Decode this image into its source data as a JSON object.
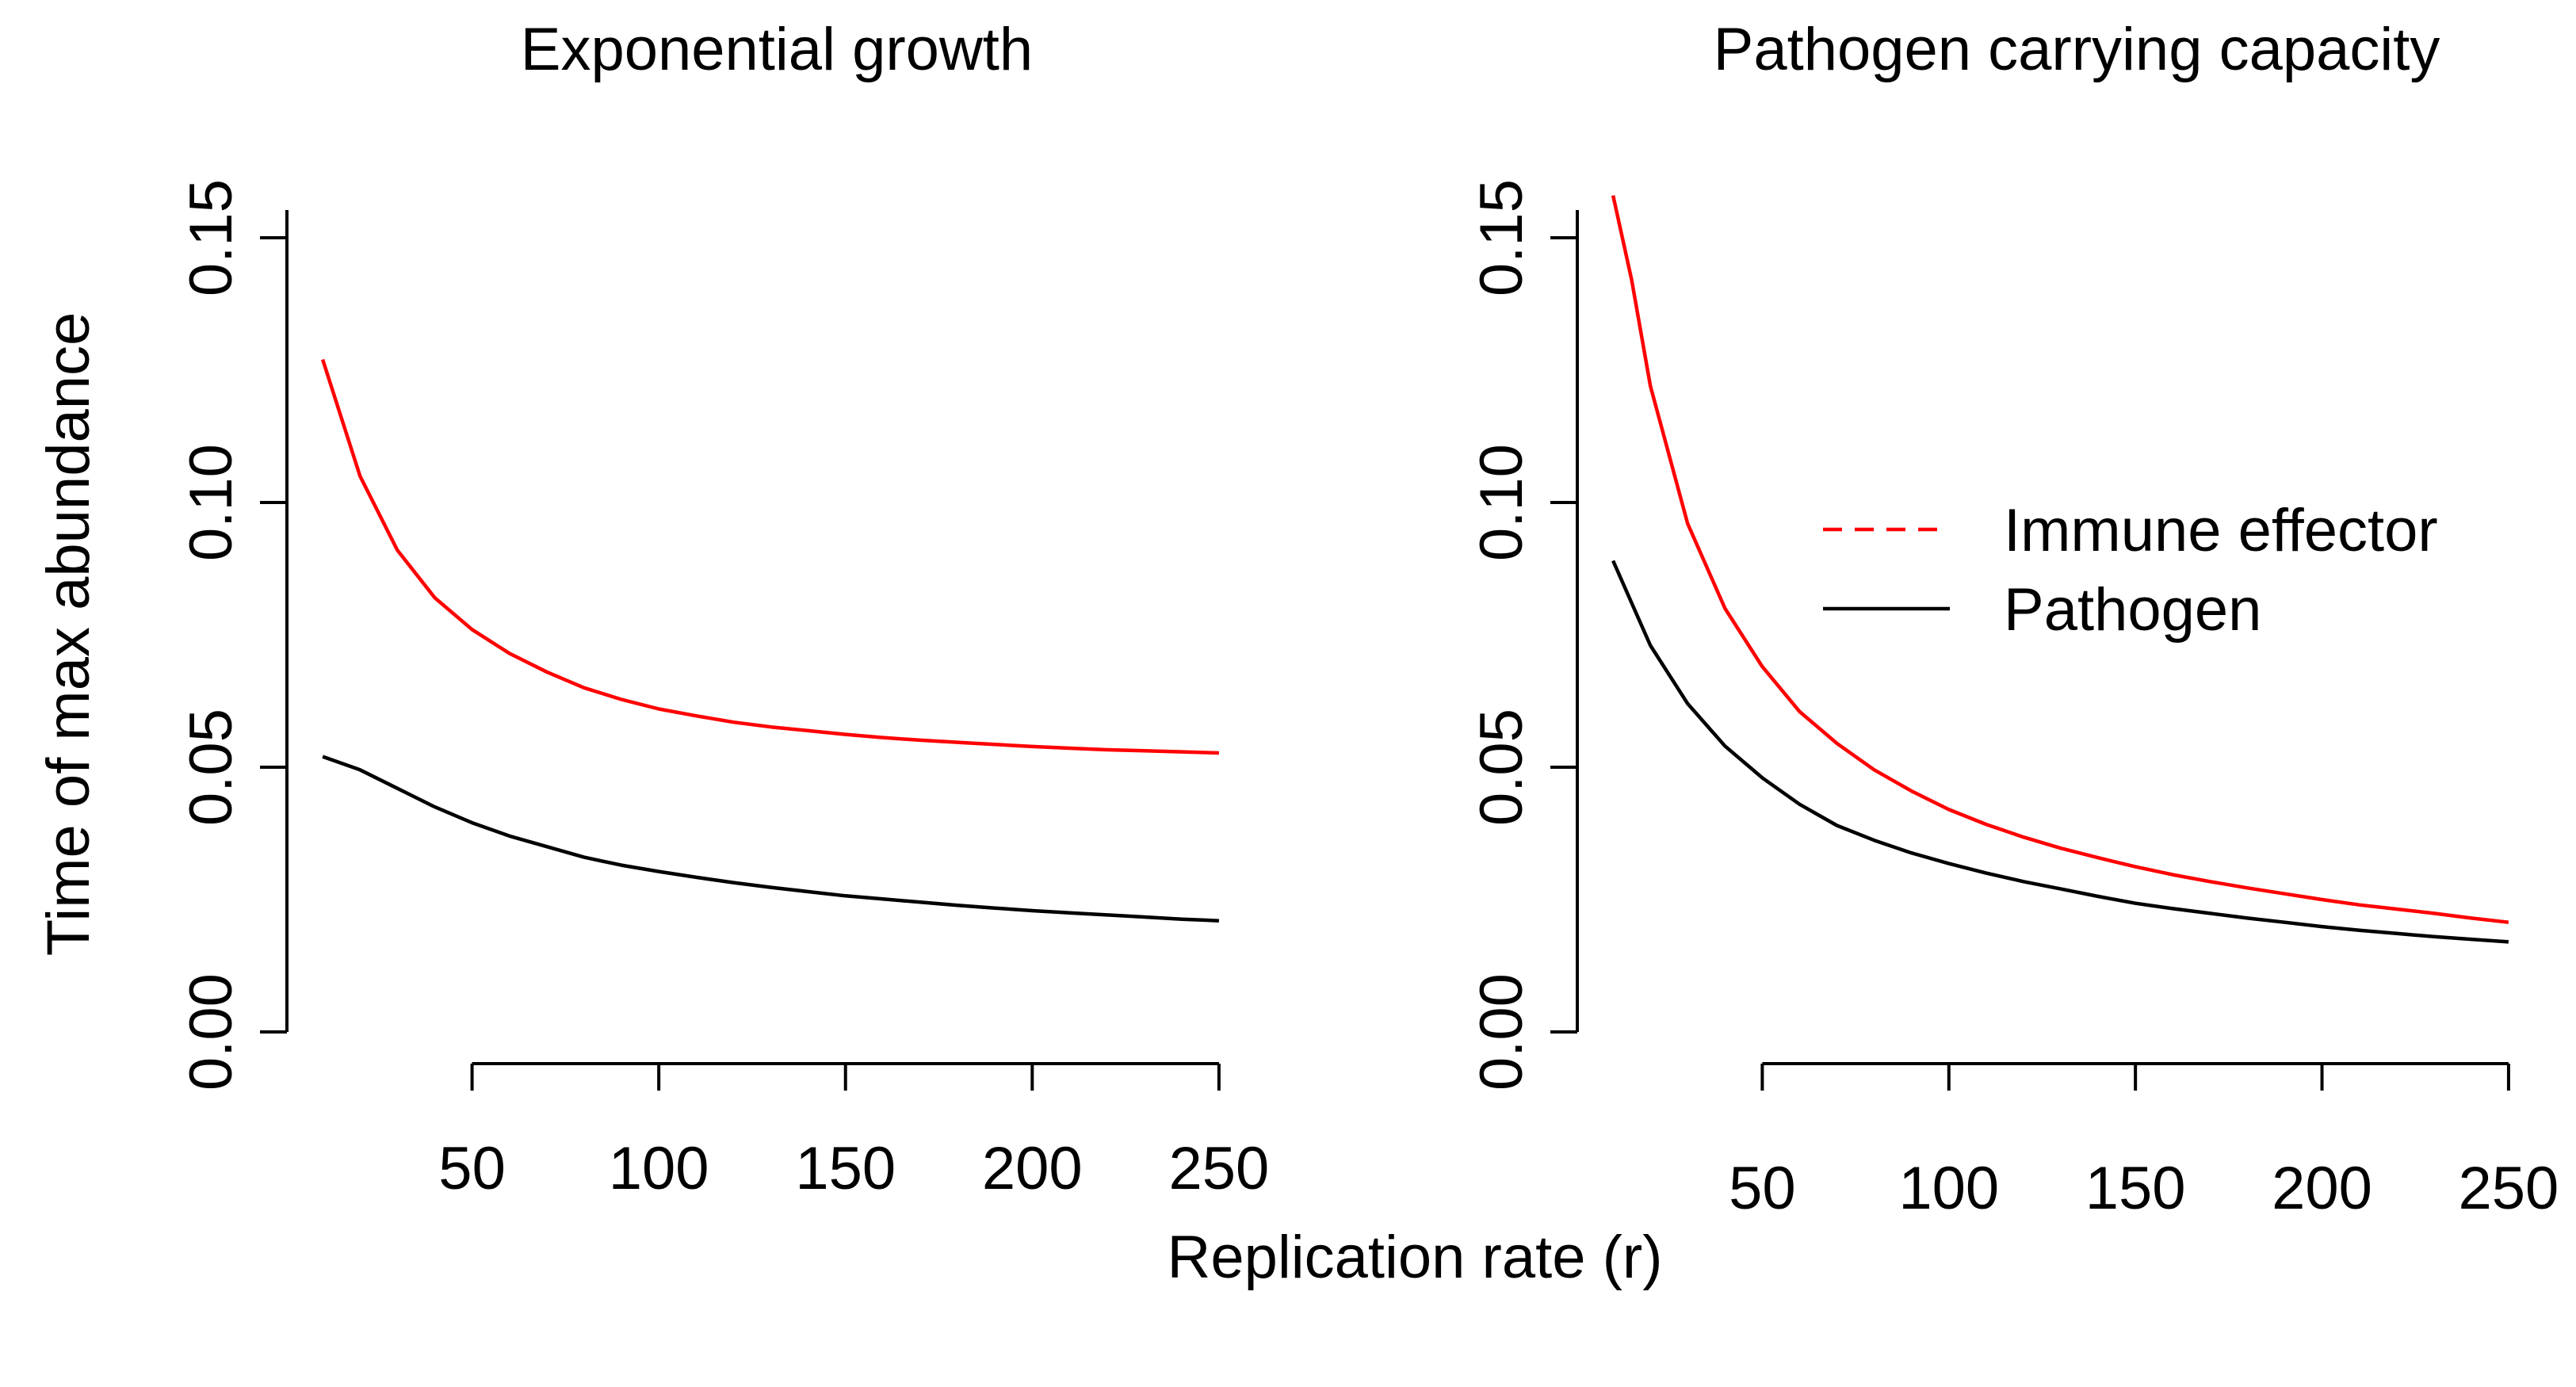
{
  "figure": {
    "xlabel": "Replication rate (r)",
    "ylabel": "Time of max abundance"
  },
  "colors": {
    "immune_effector": "#ff0000",
    "pathogen": "#000000",
    "axis": "#000000"
  },
  "legend": {
    "placement": "right",
    "items": [
      {
        "label": "Immune effector",
        "style": "dashed",
        "color": "#ff0000"
      },
      {
        "label": "Pathogen",
        "style": "solid",
        "color": "#000000"
      }
    ]
  },
  "chart_data": [
    {
      "type": "line",
      "title": "Exponential growth",
      "x": [
        10,
        20,
        30,
        40,
        50,
        60,
        70,
        80,
        90,
        100,
        110,
        120,
        130,
        140,
        150,
        160,
        170,
        180,
        190,
        200,
        210,
        220,
        230,
        240,
        250
      ],
      "series": [
        {
          "name": "Immune effector",
          "color": "#ff0000",
          "values": [
            0.127,
            0.105,
            0.091,
            0.082,
            0.076,
            0.0715,
            0.068,
            0.065,
            0.0628,
            0.061,
            0.0597,
            0.0585,
            0.0576,
            0.0569,
            0.0562,
            0.0556,
            0.0551,
            0.0547,
            0.0543,
            0.0539,
            0.0536,
            0.0533,
            0.0531,
            0.0529,
            0.0527
          ]
        },
        {
          "name": "Pathogen",
          "color": "#000000",
          "values": [
            0.052,
            0.0495,
            0.046,
            0.0425,
            0.0395,
            0.037,
            0.035,
            0.033,
            0.0315,
            0.0303,
            0.0292,
            0.0282,
            0.0273,
            0.0265,
            0.0257,
            0.0251,
            0.0245,
            0.0239,
            0.0234,
            0.0229,
            0.0225,
            0.0221,
            0.0217,
            0.0213,
            0.021
          ]
        }
      ],
      "xticks": [
        "50",
        "100",
        "150",
        "200",
        "250"
      ],
      "yticks": [
        "0.00",
        "0.05",
        "0.10",
        "0.15"
      ],
      "xlim": [
        0,
        260
      ],
      "ylim": [
        0,
        0.15
      ],
      "grid": false
    },
    {
      "type": "line",
      "title": "Pathogen carrying capacity",
      "x": [
        10,
        15,
        20,
        30,
        40,
        50,
        60,
        70,
        80,
        90,
        100,
        110,
        120,
        130,
        140,
        150,
        160,
        170,
        180,
        190,
        200,
        210,
        220,
        230,
        240,
        250
      ],
      "series": [
        {
          "name": "Immune effector",
          "color": "#ff0000",
          "values": [
            0.158,
            0.142,
            0.122,
            0.096,
            0.08,
            0.069,
            0.0605,
            0.0545,
            0.0495,
            0.0455,
            0.042,
            0.0392,
            0.0368,
            0.0347,
            0.0329,
            0.0312,
            0.0297,
            0.0284,
            0.0272,
            0.0261,
            0.025,
            0.024,
            0.0232,
            0.0224,
            0.0215,
            0.0207
          ]
        },
        {
          "name": "Pathogen",
          "color": "#000000",
          "values": [
            0.089,
            0.081,
            0.073,
            0.062,
            0.054,
            0.048,
            0.043,
            0.039,
            0.0362,
            0.0338,
            0.0318,
            0.03,
            0.0284,
            0.027,
            0.0256,
            0.0243,
            0.0233,
            0.0224,
            0.0215,
            0.0207,
            0.0199,
            0.0192,
            0.0186,
            0.018,
            0.0175,
            0.017
          ]
        }
      ],
      "xticks": [
        "50",
        "100",
        "150",
        "200",
        "250"
      ],
      "yticks": [
        "0.00",
        "0.05",
        "0.10",
        "0.15"
      ],
      "xlim": [
        0,
        260
      ],
      "ylim": [
        0,
        0.15
      ],
      "grid": false
    }
  ]
}
